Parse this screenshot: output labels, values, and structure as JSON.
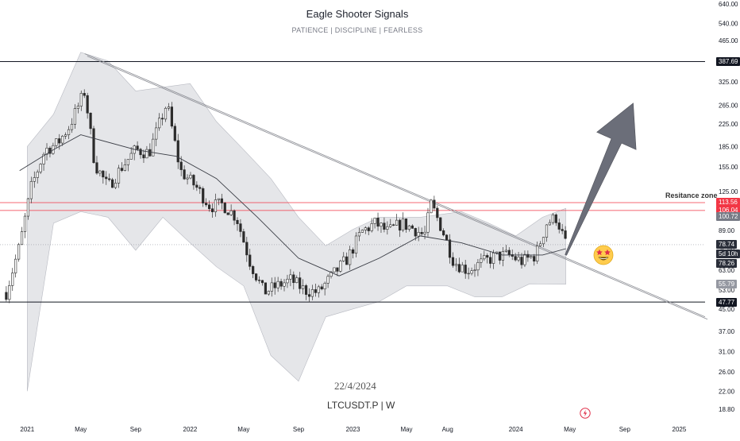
{
  "header": {
    "title": "Eagle Shooter Signals",
    "subtitle": "PATIENCE  |  DISCIPLINE  |  FEARLESS"
  },
  "annotations": {
    "date_note": "22/4/2024",
    "symbol": "LTCUSDT.P | W",
    "zone_label": "Resitance zone"
  },
  "price_badges": [
    {
      "label": "387.69",
      "value": 387.69,
      "color": "#131722"
    },
    {
      "label": "113.56",
      "value": 113.56,
      "color": "#f23645"
    },
    {
      "label": "106.04",
      "value": 106.04,
      "color": "#f23645"
    },
    {
      "label": "100.72",
      "value": 100.72,
      "color": "#787b86"
    },
    {
      "label": "78.74",
      "value": 78.74,
      "color": "#2a2e39"
    },
    {
      "label": "5d 10h",
      "value": 72.6,
      "color": "#2a2e39"
    },
    {
      "label": "78.26",
      "value": 66.8,
      "color": "#2a2e39"
    },
    {
      "label": "55.79",
      "value": 55.79,
      "color": "#9598a1"
    },
    {
      "label": "47.77",
      "value": 47.77,
      "color": "#131722"
    }
  ],
  "icons": {
    "emoji": "star-struck-emoji-icon",
    "flash": "lightning-flash-icon"
  },
  "chart_data": {
    "type": "candlestick",
    "yscale": "log",
    "ylim": [
      16.5,
      660
    ],
    "y_ticks": [
      18.8,
      22,
      26,
      31,
      37,
      45,
      53,
      63,
      75,
      89,
      106,
      125,
      155,
      185,
      225,
      265,
      325,
      387.69,
      465,
      540,
      640
    ],
    "y_tick_labels": [
      "18.80",
      "22.00",
      "26.00",
      "31.00",
      "37.00",
      "45.00",
      "53.00",
      "63.00",
      "75.00",
      "89.00",
      "106.00",
      "125.00",
      "155.00",
      "185.00",
      "225.00",
      "265.00",
      "325.00",
      "",
      "465.00",
      "540.00",
      "640.00"
    ],
    "x_range": [
      "2020-11-01",
      "2025-02-28"
    ],
    "x_ticks": [
      {
        "date": "2021-01-01",
        "label": "2021"
      },
      {
        "date": "2021-05-01",
        "label": "May"
      },
      {
        "date": "2021-09-01",
        "label": "Sep"
      },
      {
        "date": "2022-01-01",
        "label": "2022"
      },
      {
        "date": "2022-05-01",
        "label": "May"
      },
      {
        "date": "2022-09-01",
        "label": "Sep"
      },
      {
        "date": "2023-01-01",
        "label": "2023"
      },
      {
        "date": "2023-05-01",
        "label": "May"
      },
      {
        "date": "2023-08-01",
        "label": "Aug"
      },
      {
        "date": "2024-01-01",
        "label": "2024"
      },
      {
        "date": "2024-05-01",
        "label": "May"
      },
      {
        "date": "2024-09-01",
        "label": "Sep"
      },
      {
        "date": "2025-01-01",
        "label": "2025"
      }
    ],
    "price_path": [
      [
        "2020-11-15",
        52
      ],
      [
        "2020-12-15",
        78
      ],
      [
        "2021-01-10",
        130
      ],
      [
        "2021-02-10",
        180
      ],
      [
        "2021-03-10",
        190
      ],
      [
        "2021-04-05",
        220
      ],
      [
        "2021-05-10",
        300
      ],
      [
        "2021-06-01",
        160
      ],
      [
        "2021-07-01",
        130
      ],
      [
        "2021-08-01",
        155
      ],
      [
        "2021-09-01",
        180
      ],
      [
        "2021-10-01",
        175
      ],
      [
        "2021-11-10",
        270
      ],
      [
        "2021-12-10",
        150
      ],
      [
        "2022-01-15",
        130
      ],
      [
        "2022-02-15",
        110
      ],
      [
        "2022-03-15",
        112
      ],
      [
        "2022-04-15",
        100
      ],
      [
        "2022-05-15",
        68
      ],
      [
        "2022-06-15",
        52
      ],
      [
        "2022-07-15",
        55
      ],
      [
        "2022-08-15",
        58
      ],
      [
        "2022-09-15",
        53
      ],
      [
        "2022-10-15",
        52
      ],
      [
        "2022-11-15",
        60
      ],
      [
        "2022-12-20",
        70
      ],
      [
        "2023-01-20",
        88
      ],
      [
        "2023-02-20",
        95
      ],
      [
        "2023-03-20",
        88
      ],
      [
        "2023-04-20",
        95
      ],
      [
        "2023-05-20",
        90
      ],
      [
        "2023-06-10",
        85
      ],
      [
        "2023-06-25",
        112
      ],
      [
        "2023-07-20",
        90
      ],
      [
        "2023-08-15",
        68
      ],
      [
        "2023-09-15",
        63
      ],
      [
        "2023-10-15",
        67
      ],
      [
        "2023-11-15",
        71
      ],
      [
        "2023-12-15",
        72
      ],
      [
        "2024-01-15",
        68
      ],
      [
        "2024-02-15",
        72
      ],
      [
        "2024-03-10",
        95
      ],
      [
        "2024-04-01",
        100
      ],
      [
        "2024-04-22",
        78.74
      ]
    ],
    "moving_average": [
      [
        "2020-12-15",
        150
      ],
      [
        "2021-03-01",
        180
      ],
      [
        "2021-05-01",
        205
      ],
      [
        "2021-09-01",
        180
      ],
      [
        "2021-12-01",
        170
      ],
      [
        "2022-03-01",
        140
      ],
      [
        "2022-06-01",
        100
      ],
      [
        "2022-09-01",
        70
      ],
      [
        "2022-12-01",
        60
      ],
      [
        "2023-03-01",
        70
      ],
      [
        "2023-06-01",
        85
      ],
      [
        "2023-09-01",
        80
      ],
      [
        "2023-12-01",
        72
      ],
      [
        "2024-03-01",
        72
      ],
      [
        "2024-04-22",
        76
      ]
    ],
    "band_upper": [
      [
        "2021-01-01",
        185
      ],
      [
        "2021-03-01",
        245
      ],
      [
        "2021-05-01",
        420
      ],
      [
        "2021-07-01",
        390
      ],
      [
        "2021-09-01",
        300
      ],
      [
        "2021-11-01",
        310
      ],
      [
        "2022-01-01",
        320
      ],
      [
        "2022-03-01",
        230
      ],
      [
        "2022-05-01",
        180
      ],
      [
        "2022-07-01",
        140
      ],
      [
        "2022-09-01",
        100
      ],
      [
        "2022-11-01",
        78
      ],
      [
        "2023-01-01",
        90
      ],
      [
        "2023-03-01",
        100
      ],
      [
        "2023-06-01",
        100
      ],
      [
        "2023-09-01",
        105
      ],
      [
        "2023-11-01",
        95
      ],
      [
        "2024-01-01",
        85
      ],
      [
        "2024-03-01",
        100
      ],
      [
        "2024-04-22",
        108
      ]
    ],
    "band_lower": [
      [
        "2021-01-01",
        22
      ],
      [
        "2021-03-01",
        95
      ],
      [
        "2021-05-01",
        105
      ],
      [
        "2021-07-01",
        100
      ],
      [
        "2021-09-01",
        75
      ],
      [
        "2021-11-01",
        100
      ],
      [
        "2022-01-01",
        80
      ],
      [
        "2022-03-01",
        65
      ],
      [
        "2022-05-01",
        55
      ],
      [
        "2022-07-01",
        30
      ],
      [
        "2022-09-01",
        24
      ],
      [
        "2022-11-01",
        42
      ],
      [
        "2023-01-01",
        45
      ],
      [
        "2023-03-01",
        48
      ],
      [
        "2023-05-01",
        55
      ],
      [
        "2023-08-01",
        55
      ],
      [
        "2023-10-01",
        50
      ],
      [
        "2023-12-01",
        50
      ],
      [
        "2024-02-01",
        56
      ],
      [
        "2024-04-22",
        55.79
      ]
    ],
    "horizontal_lines": [
      {
        "value": 387.69,
        "color": "#131722"
      },
      {
        "value": 113.56,
        "color": "#f23645"
      },
      {
        "value": 106.04,
        "color": "#f23645"
      },
      {
        "value": 47.77,
        "color": "#131722"
      }
    ],
    "trendline": {
      "start": [
        "2021-05-10",
        415
      ],
      "end": [
        "2025-02-28",
        42
      ]
    },
    "forecast_arrow": {
      "start": [
        "2024-04-22",
        72
      ],
      "end": [
        "2024-09-20",
        270
      ],
      "color": "#6b6e79"
    }
  }
}
